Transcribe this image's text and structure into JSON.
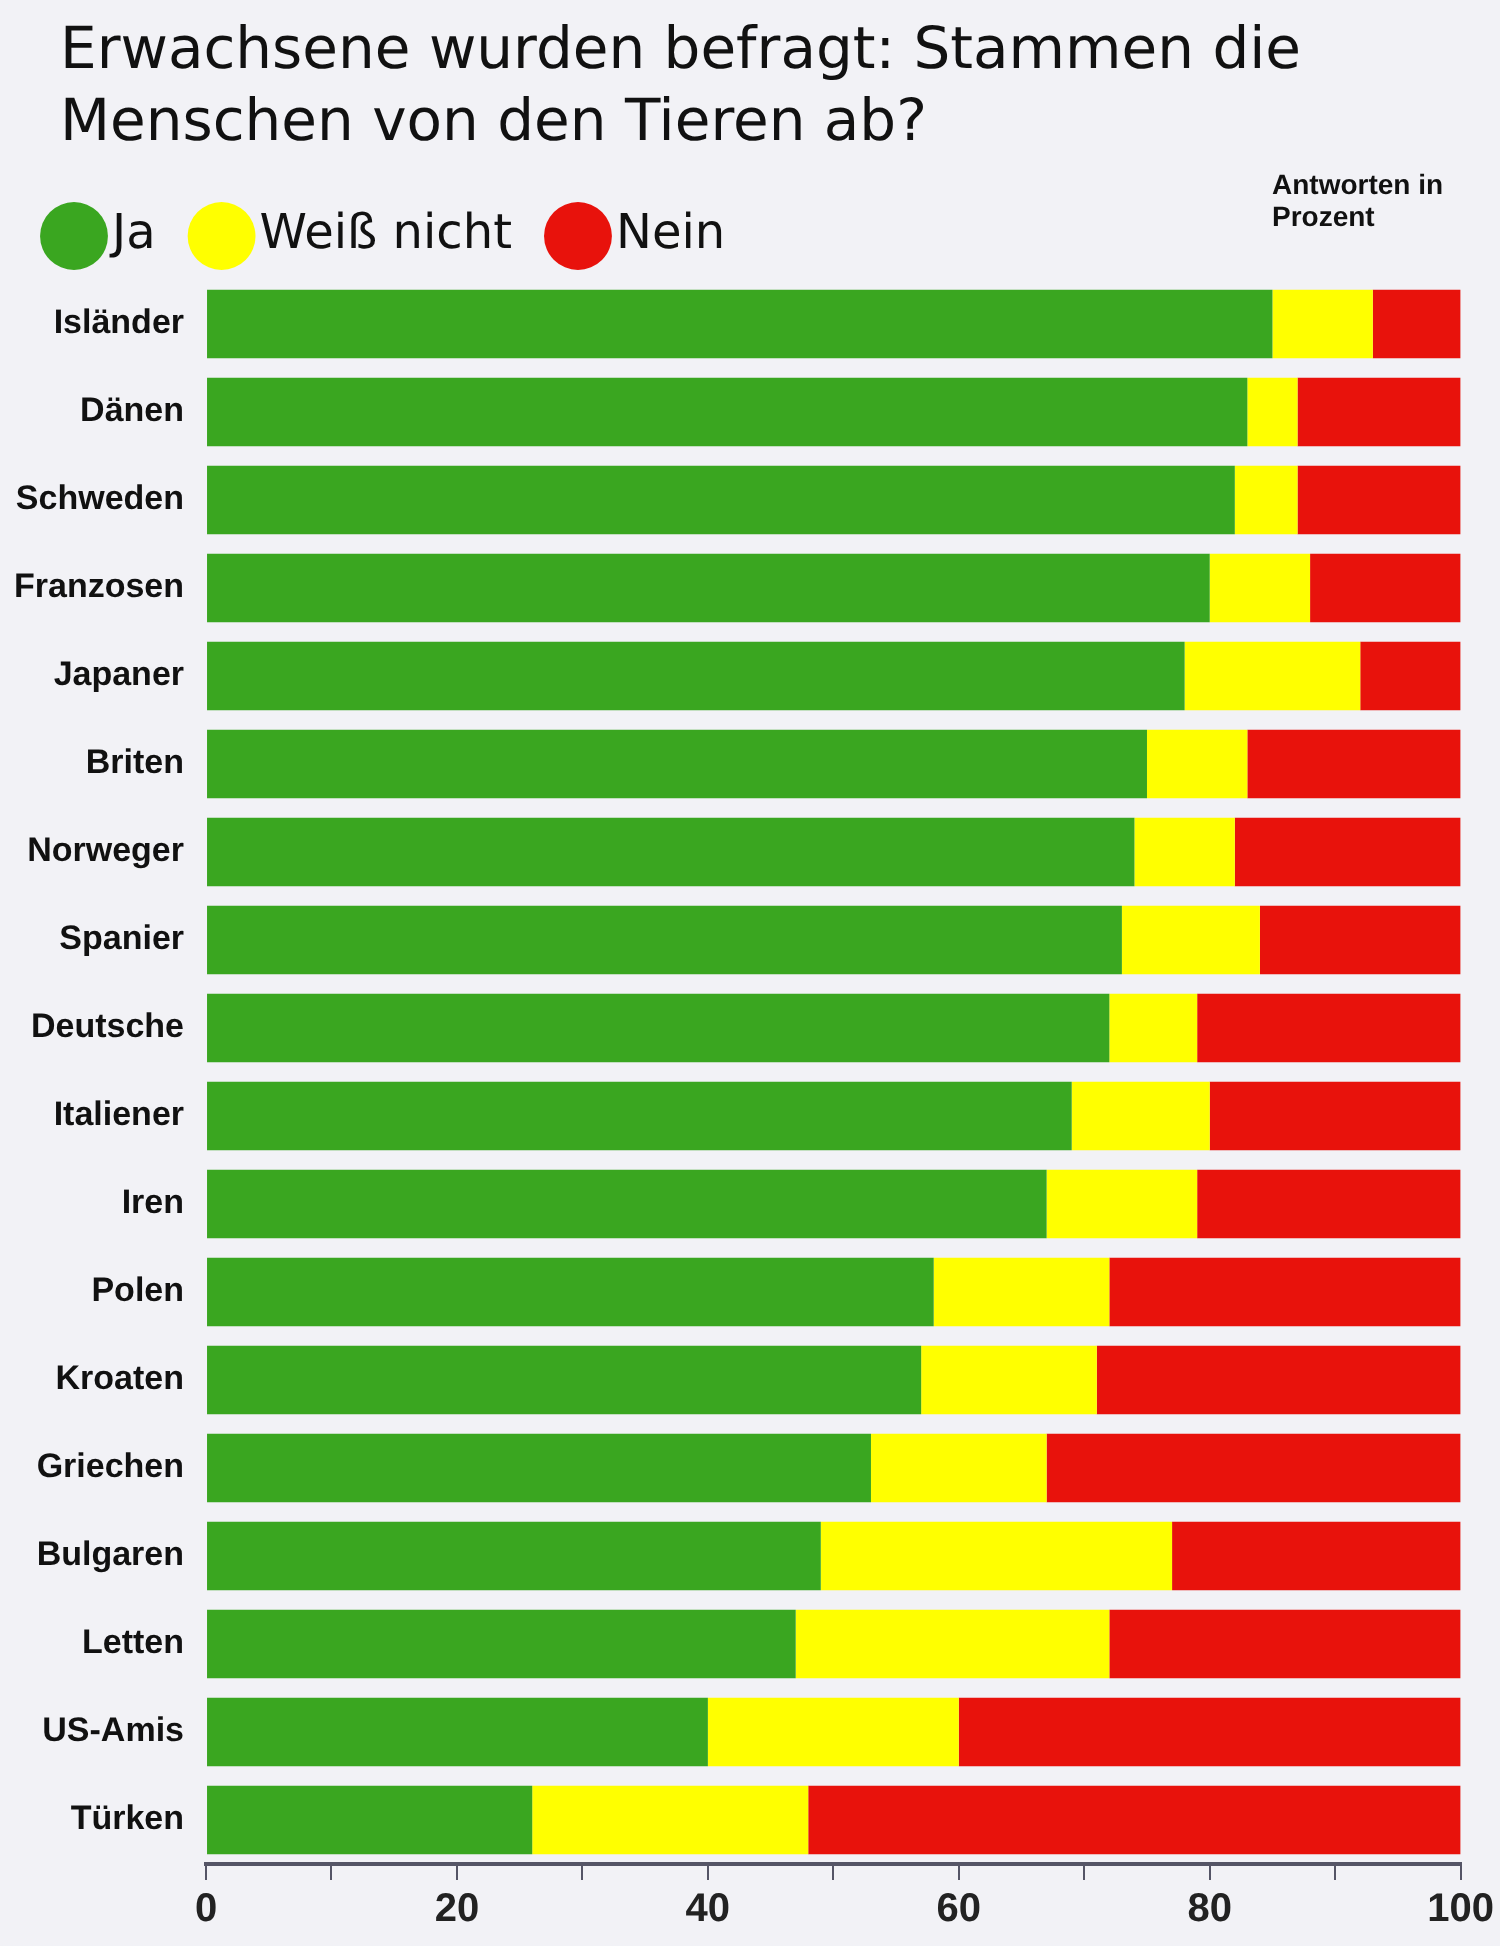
{
  "chart_data": {
    "type": "bar",
    "orientation": "horizontal",
    "stacked": true,
    "title": "Erwachsene wurden befragt: Stammen die Menschen von den Tieren ab?",
    "annotations": [
      "Antworten in Prozent"
    ],
    "categories": [
      "Isländer",
      "Dänen",
      "Schweden",
      "Franzosen",
      "Japaner",
      "Briten",
      "Norweger",
      "Spanier",
      "Deutsche",
      "Italiener",
      "Iren",
      "Polen",
      "Kroaten",
      "Griechen",
      "Bulgaren",
      "Letten",
      "US-Amis",
      "Türken"
    ],
    "series": [
      {
        "name": "Ja",
        "color": "#3aa620",
        "values": [
          85,
          83,
          82,
          80,
          78,
          75,
          74,
          73,
          72,
          69,
          67,
          58,
          57,
          53,
          49,
          47,
          40,
          26
        ]
      },
      {
        "name": "Weiß nicht",
        "color": "#ffff00",
        "values": [
          8,
          4,
          5,
          8,
          14,
          8,
          8,
          11,
          7,
          11,
          12,
          14,
          14,
          14,
          28,
          25,
          20,
          22
        ]
      },
      {
        "name": "Nein",
        "color": "#e8120c",
        "values": [
          7,
          13,
          13,
          12,
          8,
          17,
          18,
          16,
          21,
          20,
          21,
          28,
          29,
          33,
          23,
          28,
          40,
          52
        ]
      }
    ],
    "xlim": [
      0,
      100
    ],
    "xticks": [
      0,
      {
        "value": 10,
        "label": null
      },
      20,
      {
        "value": 30,
        "label": null
      },
      40,
      {
        "value": 50,
        "label": null
      },
      60,
      {
        "value": 70,
        "label": null
      },
      80,
      {
        "value": 90,
        "label": null
      },
      100
    ],
    "grid": false,
    "legend": "top left"
  }
}
